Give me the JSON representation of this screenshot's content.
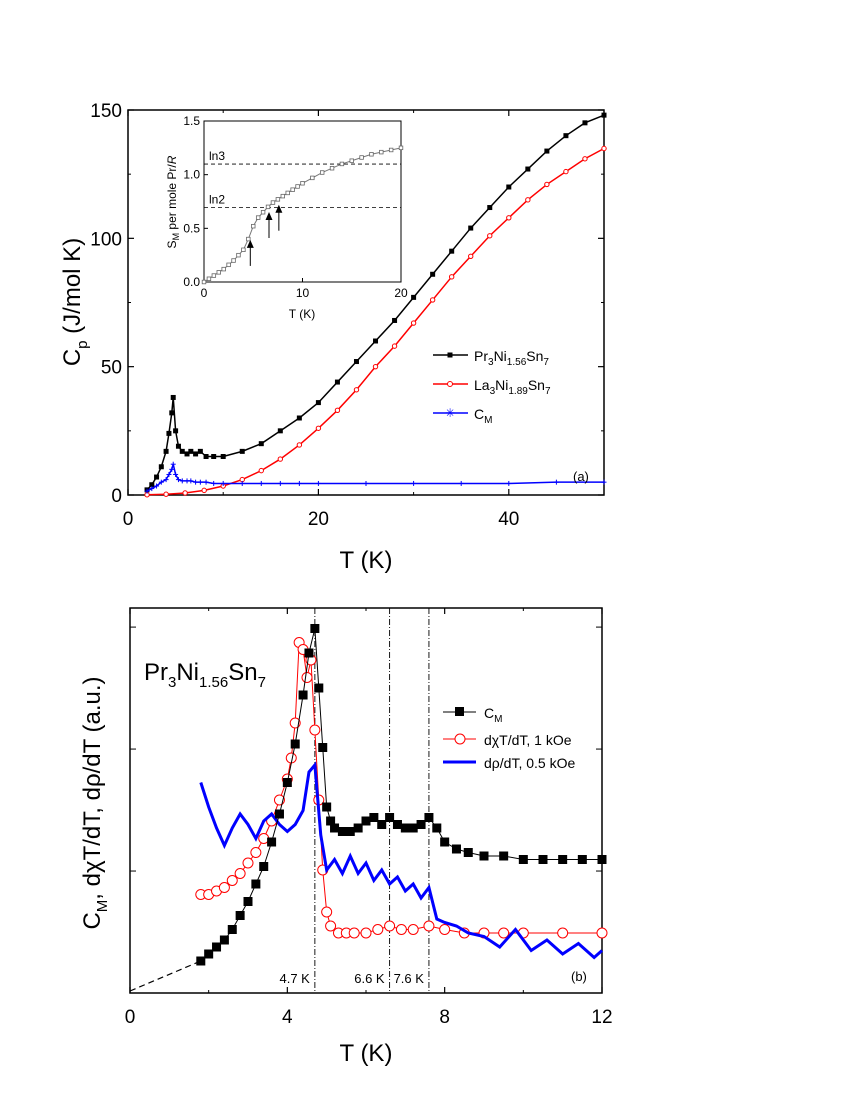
{
  "chart_data": [
    {
      "type": "line",
      "panel_label": "(a)",
      "xlabel": "T (K)",
      "ylabel": "C",
      "ylabel_sub": "p",
      "ylabel_rest": " (J/mol K)",
      "xlim": [
        0,
        50
      ],
      "ylim": [
        0,
        150
      ],
      "xticks": [
        0,
        20,
        40
      ],
      "yticks": [
        0,
        50,
        100,
        150
      ],
      "series": [
        {
          "name": "Pr3Ni1.56Sn7",
          "legend": {
            "a": "Pr",
            "b": "3",
            "c": "Ni",
            "d": "1.56",
            "e": "Sn",
            "f": "7"
          },
          "color": "#000000",
          "marker": "square",
          "x": [
            2,
            2.5,
            3,
            3.5,
            4,
            4.3,
            4.6,
            4.75,
            5,
            5.3,
            5.7,
            6.2,
            6.6,
            7.1,
            7.6,
            8.2,
            9,
            10,
            12,
            14,
            16,
            18,
            20,
            22,
            24,
            26,
            28,
            30,
            32,
            34,
            36,
            38,
            40,
            42,
            44,
            46,
            48,
            50
          ],
          "y": [
            2,
            4,
            7,
            11,
            17,
            24,
            32,
            38,
            25,
            19,
            17,
            16,
            17,
            16,
            17,
            15,
            15,
            15,
            17,
            20,
            25,
            30,
            36,
            44,
            52,
            60,
            68,
            77,
            86,
            95,
            104,
            112,
            120,
            127,
            134,
            140,
            145,
            148
          ]
        },
        {
          "name": "La3Ni1.89Sn7",
          "legend": {
            "a": "La",
            "b": "3",
            "c": "Ni",
            "d": "1.89",
            "e": "Sn",
            "f": "7"
          },
          "color": "#ff0000",
          "marker": "circle",
          "x": [
            2,
            4,
            6,
            8,
            10,
            12,
            14,
            16,
            18,
            20,
            22,
            24,
            26,
            28,
            30,
            32,
            34,
            36,
            38,
            40,
            42,
            44,
            46,
            48,
            50
          ],
          "y": [
            0.1,
            0.3,
            0.8,
            1.8,
            3.5,
            6,
            9.5,
            14,
            19.5,
            26,
            33,
            41,
            50,
            58,
            67,
            76,
            85,
            93,
            101,
            108,
            115,
            121,
            126,
            131,
            135
          ]
        },
        {
          "name": "C_M",
          "legend": {
            "a": "C",
            "b": "M",
            "c": "",
            "d": "",
            "e": "",
            "f": ""
          },
          "color": "#0000ff",
          "marker": "star",
          "x": [
            2,
            2.5,
            3,
            3.5,
            4,
            4.3,
            4.6,
            4.75,
            5,
            5.3,
            5.7,
            6.2,
            6.6,
            7.1,
            7.6,
            8.2,
            9,
            10,
            12,
            14,
            16,
            18,
            20,
            25,
            30,
            35,
            40,
            45,
            50
          ],
          "y": [
            1.5,
            2.5,
            3.5,
            5,
            6,
            8,
            10,
            12,
            8,
            6,
            5.5,
            5.5,
            5.5,
            5,
            5,
            5,
            4.5,
            4.5,
            4.5,
            4.5,
            4.5,
            4.5,
            4.5,
            4.5,
            4.5,
            4.5,
            4.5,
            5,
            5
          ]
        }
      ],
      "inset": {
        "xlabel": "T (K)",
        "ylabel_main": "S",
        "ylabel_sub": "M",
        "ylabel_rest": " per mole Pr/",
        "ylabel_R": "R",
        "xlim": [
          0,
          20
        ],
        "ylim": [
          0,
          1.5
        ],
        "xticks": [
          0,
          10,
          20
        ],
        "yticks": [
          "0.0",
          "0.5",
          "1.0",
          "1.5"
        ],
        "yticks_values": [
          0,
          0.5,
          1.0,
          1.5
        ],
        "ln_labels": [
          {
            "text": "ln2",
            "value": 0.693
          },
          {
            "text": "ln3",
            "value": 1.099
          }
        ],
        "arrows_x": [
          4.7,
          6.6,
          7.6
        ],
        "x": [
          0,
          0.5,
          1,
          1.5,
          2,
          2.5,
          3,
          3.5,
          4,
          4.5,
          5,
          5.5,
          6,
          6.5,
          7,
          7.5,
          8,
          8.5,
          9,
          9.5,
          10,
          11,
          12,
          13,
          14,
          15,
          16,
          17,
          18,
          19,
          20
        ],
        "y": [
          0,
          0.03,
          0.06,
          0.09,
          0.12,
          0.16,
          0.2,
          0.25,
          0.3,
          0.4,
          0.52,
          0.6,
          0.65,
          0.7,
          0.74,
          0.77,
          0.8,
          0.83,
          0.86,
          0.89,
          0.92,
          0.97,
          1.02,
          1.06,
          1.1,
          1.13,
          1.16,
          1.19,
          1.21,
          1.23,
          1.25
        ]
      }
    },
    {
      "type": "line",
      "panel_label": "(b)",
      "title": {
        "a": "Pr",
        "b": "3",
        "c": "Ni",
        "d": "1.56",
        "e": "Sn",
        "f": "7"
      },
      "xlabel": "T (K)",
      "ylabel": {
        "p1": "C",
        "p1sub": "M",
        "p2": ", dχT/dT, dρ/dT (a.u.)"
      },
      "xlim": [
        0,
        12
      ],
      "ylim": [
        0,
        1
      ],
      "xticks": [
        0,
        4,
        8,
        12
      ],
      "vlines": [
        {
          "x": 4.7,
          "label": "4.7 K"
        },
        {
          "x": 6.6,
          "label": "6.6 K"
        },
        {
          "x": 7.6,
          "label": "7.6 K"
        }
      ],
      "series": [
        {
          "name": "C_M",
          "legend": {
            "a": "C",
            "b": "M",
            "c": "",
            "d": ""
          },
          "color": "#000000",
          "marker": "square",
          "x": [
            1.8,
            2,
            2.2,
            2.4,
            2.6,
            2.8,
            3,
            3.2,
            3.4,
            3.6,
            3.8,
            4,
            4.2,
            4.4,
            4.55,
            4.7,
            4.8,
            4.9,
            5,
            5.1,
            5.2,
            5.4,
            5.6,
            5.8,
            6,
            6.2,
            6.4,
            6.6,
            6.8,
            7,
            7.2,
            7.4,
            7.6,
            7.8,
            8,
            8.3,
            8.6,
            9,
            9.5,
            10,
            10.5,
            11,
            11.5,
            12
          ],
          "y": [
            0.04,
            0.06,
            0.08,
            0.1,
            0.13,
            0.17,
            0.21,
            0.26,
            0.31,
            0.38,
            0.46,
            0.55,
            0.66,
            0.8,
            0.92,
            0.99,
            0.82,
            0.65,
            0.48,
            0.44,
            0.42,
            0.41,
            0.41,
            0.42,
            0.44,
            0.45,
            0.43,
            0.45,
            0.43,
            0.42,
            0.42,
            0.43,
            0.45,
            0.42,
            0.38,
            0.36,
            0.35,
            0.34,
            0.34,
            0.33,
            0.33,
            0.33,
            0.33,
            0.33
          ]
        },
        {
          "name": "dχT/dT, 1 kOe",
          "legend": {
            "a": "d",
            "b": "χ",
            "c": "T/dT, 1 kOe",
            "d": ""
          },
          "color": "#ff0000",
          "marker": "circle",
          "x": [
            1.8,
            2,
            2.2,
            2.4,
            2.6,
            2.8,
            3,
            3.2,
            3.4,
            3.6,
            3.8,
            4,
            4.1,
            4.2,
            4.3,
            4.4,
            4.5,
            4.6,
            4.7,
            4.8,
            4.9,
            5,
            5.1,
            5.3,
            5.5,
            5.7,
            6,
            6.3,
            6.6,
            6.9,
            7.2,
            7.6,
            8,
            8.5,
            9,
            9.5,
            10,
            11,
            12
          ],
          "y": [
            0.23,
            0.23,
            0.24,
            0.25,
            0.27,
            0.29,
            0.32,
            0.35,
            0.39,
            0.44,
            0.5,
            0.56,
            0.62,
            0.72,
            0.95,
            0.93,
            0.85,
            0.9,
            0.7,
            0.5,
            0.3,
            0.18,
            0.14,
            0.12,
            0.12,
            0.12,
            0.12,
            0.13,
            0.14,
            0.13,
            0.13,
            0.14,
            0.13,
            0.12,
            0.12,
            0.12,
            0.12,
            0.12,
            0.12
          ]
        },
        {
          "name": "dρ/dT, 0.5 kOe",
          "legend": {
            "a": "d",
            "b": "ρ",
            "c": "/dT, 0.5 kOe",
            "d": ""
          },
          "color": "#0000ff",
          "marker": "none",
          "x": [
            1.8,
            2.0,
            2.2,
            2.4,
            2.6,
            2.8,
            3.0,
            3.2,
            3.4,
            3.6,
            3.8,
            4.0,
            4.2,
            4.4,
            4.55,
            4.7,
            4.85,
            5.0,
            5.2,
            5.4,
            5.6,
            5.8,
            6.0,
            6.2,
            6.4,
            6.6,
            6.8,
            7.0,
            7.2,
            7.4,
            7.6,
            7.8,
            8.0,
            8.3,
            8.6,
            9.0,
            9.4,
            9.8,
            10.2,
            10.6,
            11.0,
            11.4,
            11.8,
            12
          ],
          "y": [
            0.55,
            0.48,
            0.42,
            0.37,
            0.42,
            0.46,
            0.43,
            0.39,
            0.44,
            0.46,
            0.43,
            0.41,
            0.43,
            0.47,
            0.58,
            0.6,
            0.4,
            0.3,
            0.33,
            0.29,
            0.34,
            0.29,
            0.32,
            0.27,
            0.3,
            0.26,
            0.28,
            0.24,
            0.26,
            0.22,
            0.25,
            0.16,
            0.15,
            0.14,
            0.12,
            0.11,
            0.08,
            0.13,
            0.07,
            0.1,
            0.06,
            0.09,
            0.05,
            0.07
          ]
        }
      ],
      "dashed_extrapolation": {
        "x": [
          0,
          1.8
        ],
        "y": [
          0.0,
          0.04
        ]
      }
    }
  ]
}
